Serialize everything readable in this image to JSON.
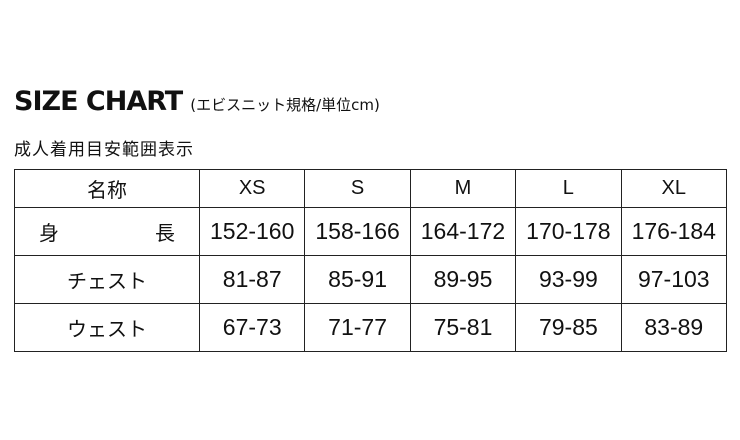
{
  "header": {
    "title": "SIZE CHART",
    "note": "(エビスニット規格/単位cm)"
  },
  "subtitle": "成人着用目安範囲表示",
  "table": {
    "corner": "名称",
    "sizes": [
      "XS",
      "S",
      "M",
      "L",
      "XL"
    ],
    "rows": [
      {
        "label": "身　長",
        "values": [
          "152-160",
          "158-166",
          "164-172",
          "170-178",
          "176-184"
        ]
      },
      {
        "label": "チェスト",
        "values": [
          "81-87",
          "85-91",
          "89-95",
          "93-99",
          "97-103"
        ]
      },
      {
        "label": "ウェスト",
        "values": [
          "67-73",
          "71-77",
          "75-81",
          "79-85",
          "83-89"
        ]
      }
    ]
  }
}
